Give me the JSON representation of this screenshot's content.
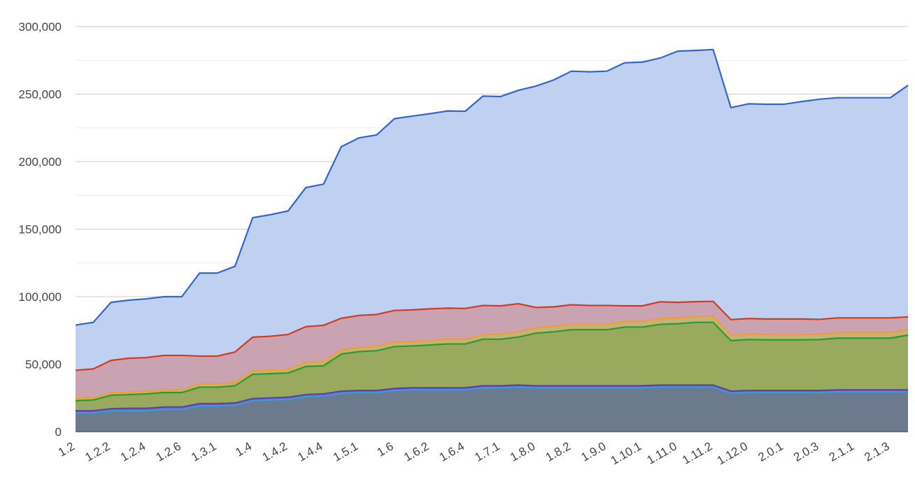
{
  "chart_data": {
    "type": "area",
    "stacked": true,
    "title": "",
    "xlabel": "",
    "ylabel": "",
    "ylim": [
      0,
      300000
    ],
    "y_ticks": [
      0,
      50000,
      100000,
      150000,
      200000,
      250000,
      300000
    ],
    "y_tick_labels": [
      "0",
      "50,000",
      "100,000",
      "150,000",
      "200,000",
      "250,000",
      "300,000"
    ],
    "grid": true,
    "legend": "none",
    "x_tick_labels": [
      "1.2",
      "1.2.2",
      "1.2.4",
      "1.2.6",
      "1.3.1",
      "1.4",
      "1.4.2",
      "1.4.4",
      "1.5.1",
      "1.6",
      "1.6.2",
      "1.6.4",
      "1.7.1",
      "1.8.0",
      "1.8.2",
      "1.9.0",
      "1.10.1",
      "1.11.0",
      "1.11.2",
      "1.12.0",
      "2.0.1",
      "2.0.3",
      "2.1.1",
      "2.1.3"
    ],
    "x_tick_every": 2,
    "point_count": 48,
    "series": [
      {
        "color": "#6b7a8c",
        "line_color": "#3a9ad9",
        "values": [
          14000,
          14000,
          15500,
          15500,
          15500,
          16500,
          16500,
          19000,
          19000,
          19500,
          23000,
          23500,
          24000,
          26000,
          26500,
          28500,
          29000,
          29000,
          30500,
          31000,
          31000,
          31000,
          31000,
          32500,
          32500,
          33000,
          32500,
          32500,
          32500,
          32500,
          32500,
          32500,
          32500,
          33000,
          33000,
          33000,
          33000,
          28500,
          29000,
          29000,
          29000,
          29000,
          29000,
          29500,
          29500,
          29500,
          29500,
          29500
        ]
      },
      {
        "color": "#7b6b9e",
        "line_color": "#5a3fb8",
        "values": [
          1500,
          1500,
          1500,
          1800,
          1800,
          1800,
          1800,
          1800,
          1800,
          1800,
          1500,
          1500,
          1500,
          1500,
          1500,
          1500,
          1500,
          1500,
          1500,
          1500,
          1500,
          1500,
          1500,
          1500,
          1500,
          1500,
          1500,
          1500,
          1500,
          1500,
          1500,
          1500,
          1500,
          1500,
          1500,
          1500,
          1500,
          1500,
          1500,
          1500,
          1500,
          1500,
          1500,
          1500,
          1500,
          1500,
          1500,
          1500
        ]
      },
      {
        "color": "#99a95d",
        "line_color": "#2c9b2e",
        "values": [
          7500,
          8000,
          10000,
          10200,
          10700,
          10700,
          10700,
          12200,
          12200,
          12700,
          18000,
          18000,
          18000,
          20800,
          20800,
          27500,
          28800,
          29500,
          31000,
          31000,
          31700,
          32500,
          32500,
          34500,
          34500,
          35600,
          39000,
          40000,
          41500,
          41500,
          41500,
          43500,
          43500,
          45000,
          45500,
          46500,
          46500,
          37500,
          37800,
          37500,
          37500,
          37500,
          37700,
          38300,
          38300,
          38300,
          38300,
          40500
        ]
      },
      {
        "color": "#c0b478",
        "line_color": "#f39c33",
        "values": [
          2000,
          2000,
          1800,
          1900,
          1900,
          2000,
          2000,
          2500,
          2500,
          2500,
          2500,
          2700,
          2500,
          3000,
          3000,
          3000,
          3300,
          3300,
          3300,
          3200,
          3300,
          3500,
          3300,
          3500,
          3700,
          3700,
          4000,
          4000,
          4000,
          4000,
          4000,
          4200,
          4200,
          4200,
          4300,
          4300,
          4500,
          4000,
          4000,
          4000,
          4000,
          4000,
          4000,
          4000,
          4000,
          4000,
          4000,
          4000
        ]
      },
      {
        "color": "#c9a3b2",
        "line_color": "#d33b1f",
        "values": [
          20500,
          21000,
          24000,
          25000,
          25000,
          25500,
          25500,
          20500,
          20500,
          22500,
          25000,
          25000,
          26000,
          26500,
          27000,
          23500,
          23500,
          23500,
          23500,
          23500,
          23500,
          23000,
          23000,
          21500,
          21000,
          21000,
          15000,
          14500,
          14500,
          14000,
          14000,
          11500,
          11500,
          12500,
          11500,
          11000,
          11000,
          11500,
          11500,
          11500,
          11500,
          11500,
          11000,
          11000,
          11000,
          11000,
          11000,
          9500
        ]
      },
      {
        "color": "#c0d0f0",
        "line_color": "#3366cc",
        "values": [
          33500,
          34500,
          43000,
          43000,
          43500,
          43500,
          43500,
          61500,
          61500,
          63500,
          88500,
          90000,
          91500,
          103000,
          104500,
          127000,
          131500,
          133000,
          142000,
          143500,
          144500,
          146000,
          146000,
          155000,
          155000,
          158000,
          164000,
          168000,
          173000,
          173000,
          173500,
          180000,
          180500,
          180500,
          186000,
          186000,
          186500,
          157000,
          159000,
          159000,
          159000,
          161000,
          163000,
          163000,
          163000,
          163000,
          163000,
          171500
        ]
      }
    ]
  }
}
